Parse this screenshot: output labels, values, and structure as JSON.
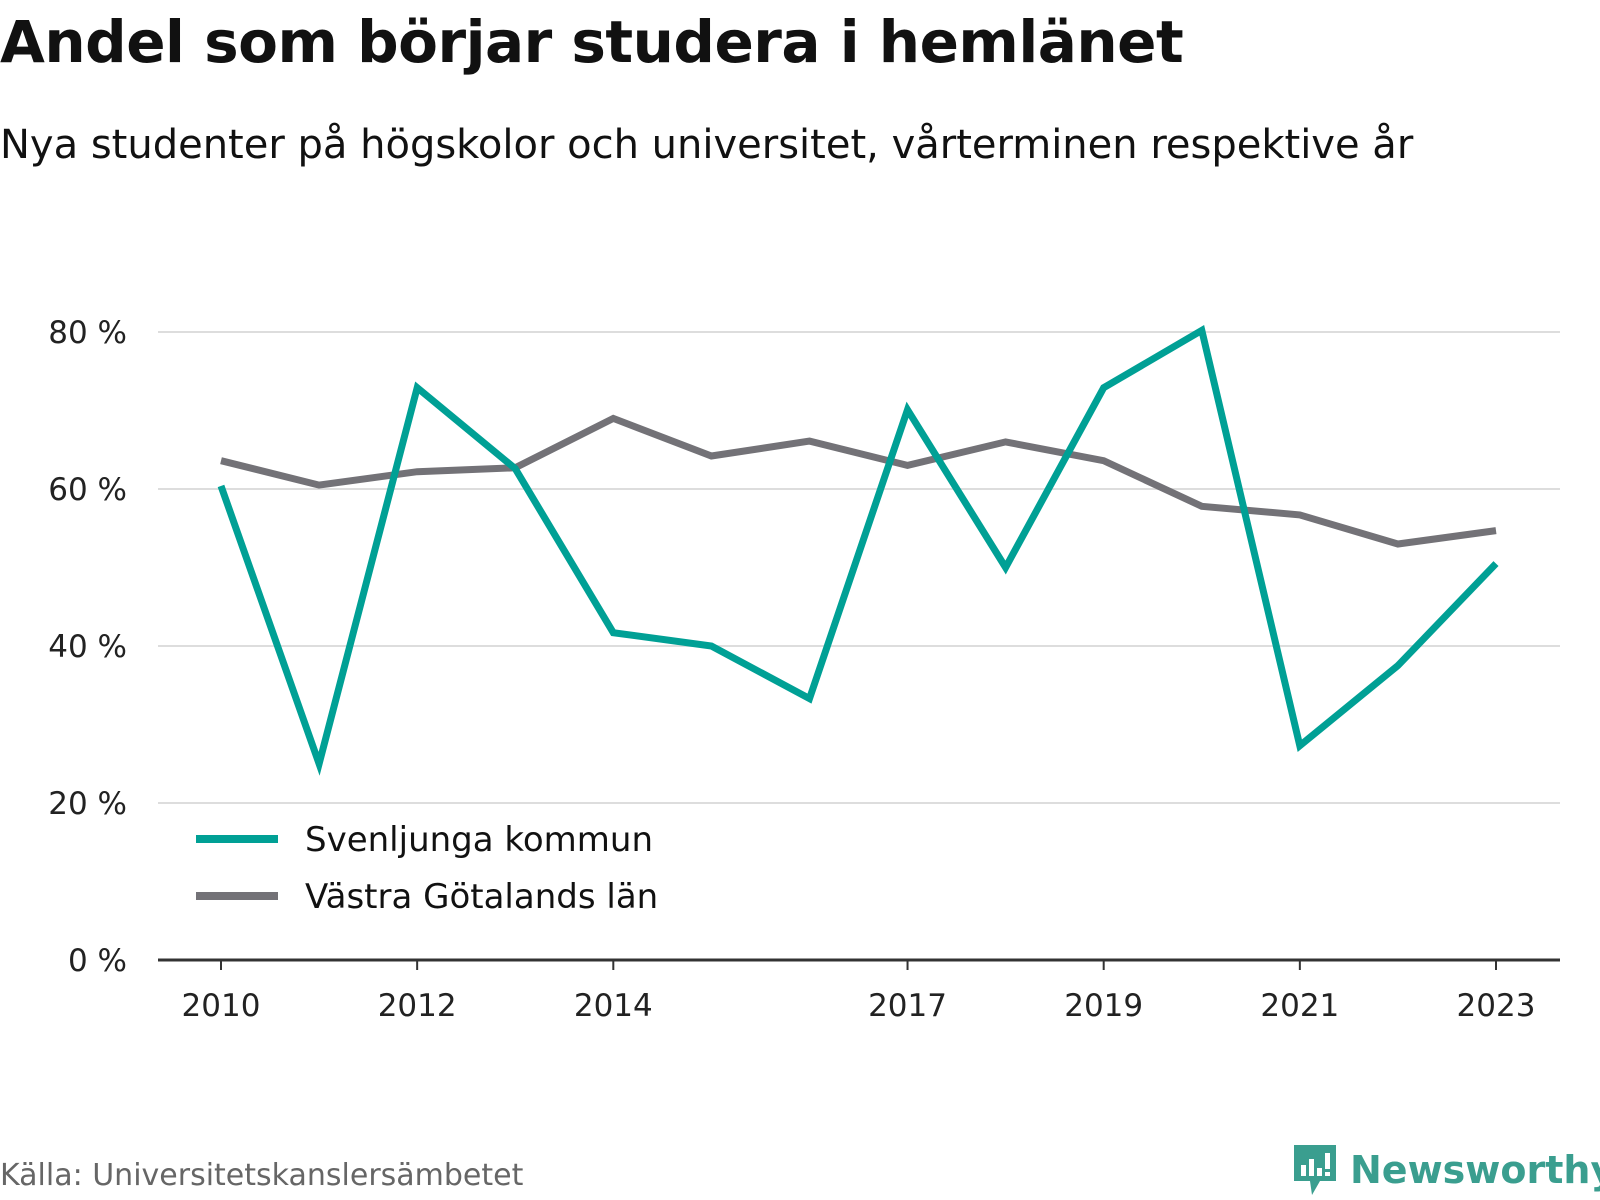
{
  "title": "Andel som börjar studera i hemlänet",
  "subtitle": "Nya studenter på högskolor och universitet, vårterminen respektive år",
  "source": "Källa: Universitetskanslersämbetet",
  "brand": "Newsworthy",
  "colors": {
    "series_1": "#00a095",
    "series_2": "#737277",
    "grid": "#dddddd",
    "axis": "#333333",
    "brand": "#3a9e8f"
  },
  "chart_data": {
    "type": "line",
    "x": [
      2010,
      2011,
      2012,
      2013,
      2014,
      2015,
      2016,
      2017,
      2018,
      2019,
      2020,
      2021,
      2022,
      2023
    ],
    "x_tick_labels": [
      "2010",
      "2012",
      "2014",
      "2017",
      "2019",
      "2021",
      "2023"
    ],
    "y_tick_labels": [
      "0 %",
      "20 %",
      "40 %",
      "60 %",
      "80 %"
    ],
    "ylim": [
      0,
      80
    ],
    "grid": true,
    "legend_position": "bottom-left",
    "series": [
      {
        "name": "Svenljunga kommun",
        "values": [
          60.4,
          25.0,
          72.9,
          62.6,
          41.7,
          40.0,
          33.3,
          70.1,
          50.0,
          72.9,
          80.2,
          27.3,
          37.5,
          50.5
        ]
      },
      {
        "name": "Västra Götalands län",
        "values": [
          63.6,
          60.5,
          62.2,
          62.7,
          69.0,
          64.2,
          66.1,
          63.0,
          66.0,
          63.6,
          57.8,
          56.7,
          53.0,
          54.7
        ]
      }
    ]
  }
}
